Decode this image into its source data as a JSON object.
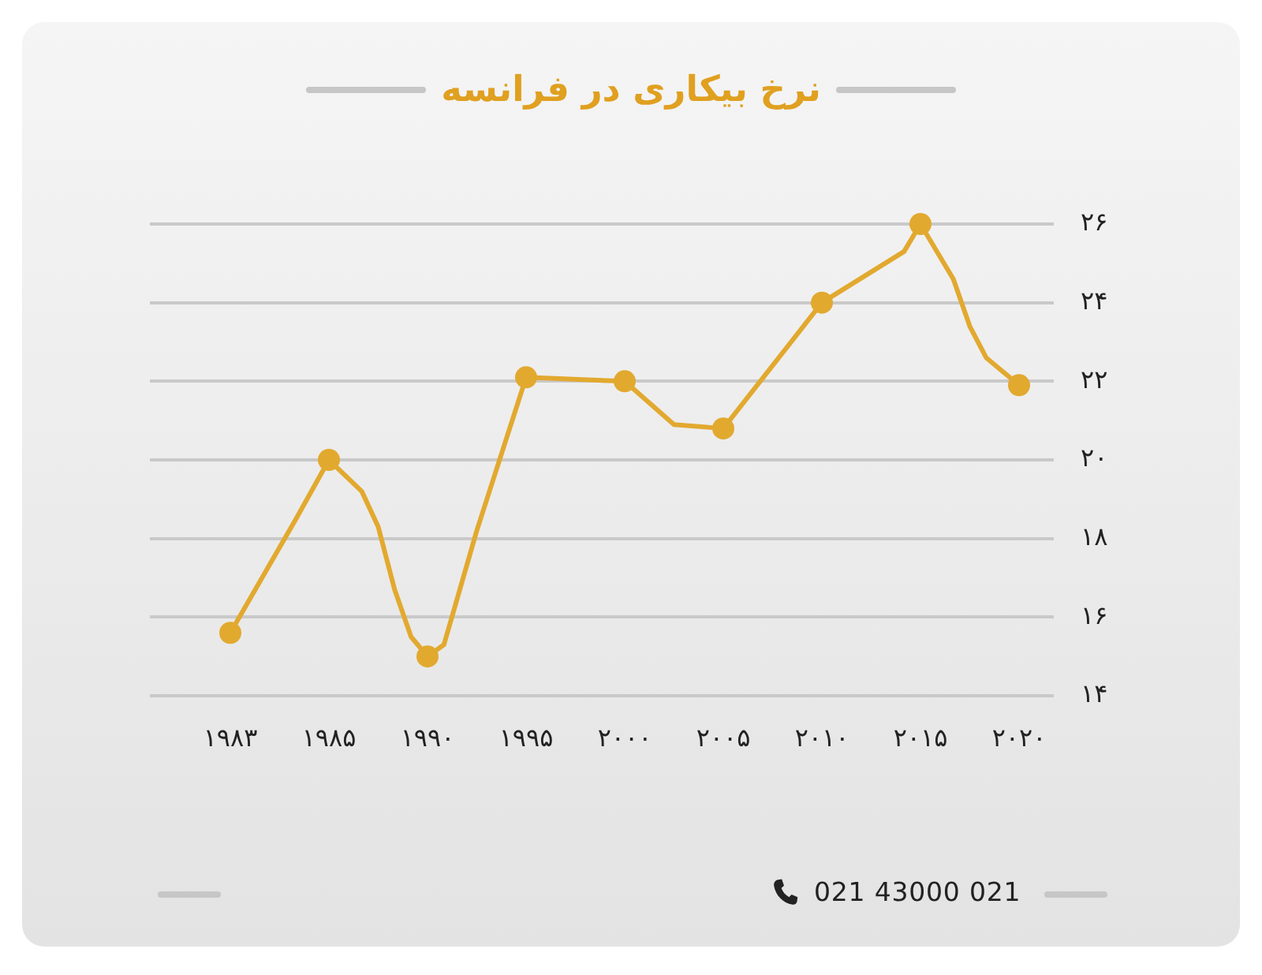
{
  "chart_data": {
    "type": "line",
    "title": "نرخ بیکاری در فرانسه",
    "categories": [
      "۱۹۸۳",
      null,
      null,
      null,
      null,
      null,
      "۱۹۸۵",
      null,
      null,
      null,
      null,
      null,
      "۱۹۹۰",
      null,
      null,
      null,
      null,
      null,
      "۱۹۹۵",
      null,
      null,
      null,
      null,
      null,
      "۲۰۰۰",
      null,
      null,
      null,
      null,
      null,
      "۲۰۰۵",
      null,
      null,
      null,
      null,
      null,
      "۲۰۱۰",
      null,
      null,
      null,
      null,
      null,
      "۲۰۱۵",
      null,
      null,
      null,
      null,
      null,
      "۲۰۲۰"
    ],
    "series": [
      {
        "color": "#e2a92f",
        "marker": "none",
        "line_style": "solid",
        "values": [
          15.6,
          null,
          null,
          null,
          18.5,
          null,
          20.0,
          null,
          19.2,
          18.3,
          16.7,
          15.5,
          15.0,
          15.3,
          null,
          18.2,
          19.5,
          null,
          22.1,
          null,
          null,
          null,
          null,
          null,
          22.0,
          null,
          null,
          20.9,
          null,
          null,
          20.8,
          null,
          null,
          null,
          null,
          null,
          24.0,
          null,
          null,
          null,
          null,
          25.3,
          26.0,
          null,
          24.6,
          23.4,
          22.6,
          null,
          21.9
        ]
      },
      {
        "type": "scatter",
        "color": "#e2a92f",
        "marker": "circle",
        "values": [
          15.6,
          null,
          null,
          null,
          null,
          null,
          20.0,
          null,
          null,
          null,
          null,
          null,
          15.0,
          null,
          null,
          null,
          null,
          null,
          22.1,
          null,
          null,
          null,
          null,
          null,
          22.0,
          null,
          null,
          null,
          null,
          null,
          20.8,
          null,
          null,
          null,
          null,
          null,
          24.0,
          null,
          null,
          null,
          null,
          null,
          26.0,
          null,
          null,
          null,
          null,
          null,
          21.9
        ]
      }
    ],
    "ylim": [
      14,
      26
    ],
    "yticks": [
      {
        "value": 14,
        "label": "۱۴"
      },
      {
        "value": 16,
        "label": "۱۶"
      },
      {
        "value": 18,
        "label": "۱۸"
      },
      {
        "value": 20,
        "label": "۲۰"
      },
      {
        "value": 22,
        "label": "۲۲"
      },
      {
        "value": 24,
        "label": "۲۴"
      },
      {
        "value": 26,
        "label": "۲۶"
      }
    ],
    "grid": "y",
    "legend": false,
    "annotations": [
      "021 43000 021"
    ]
  }
}
